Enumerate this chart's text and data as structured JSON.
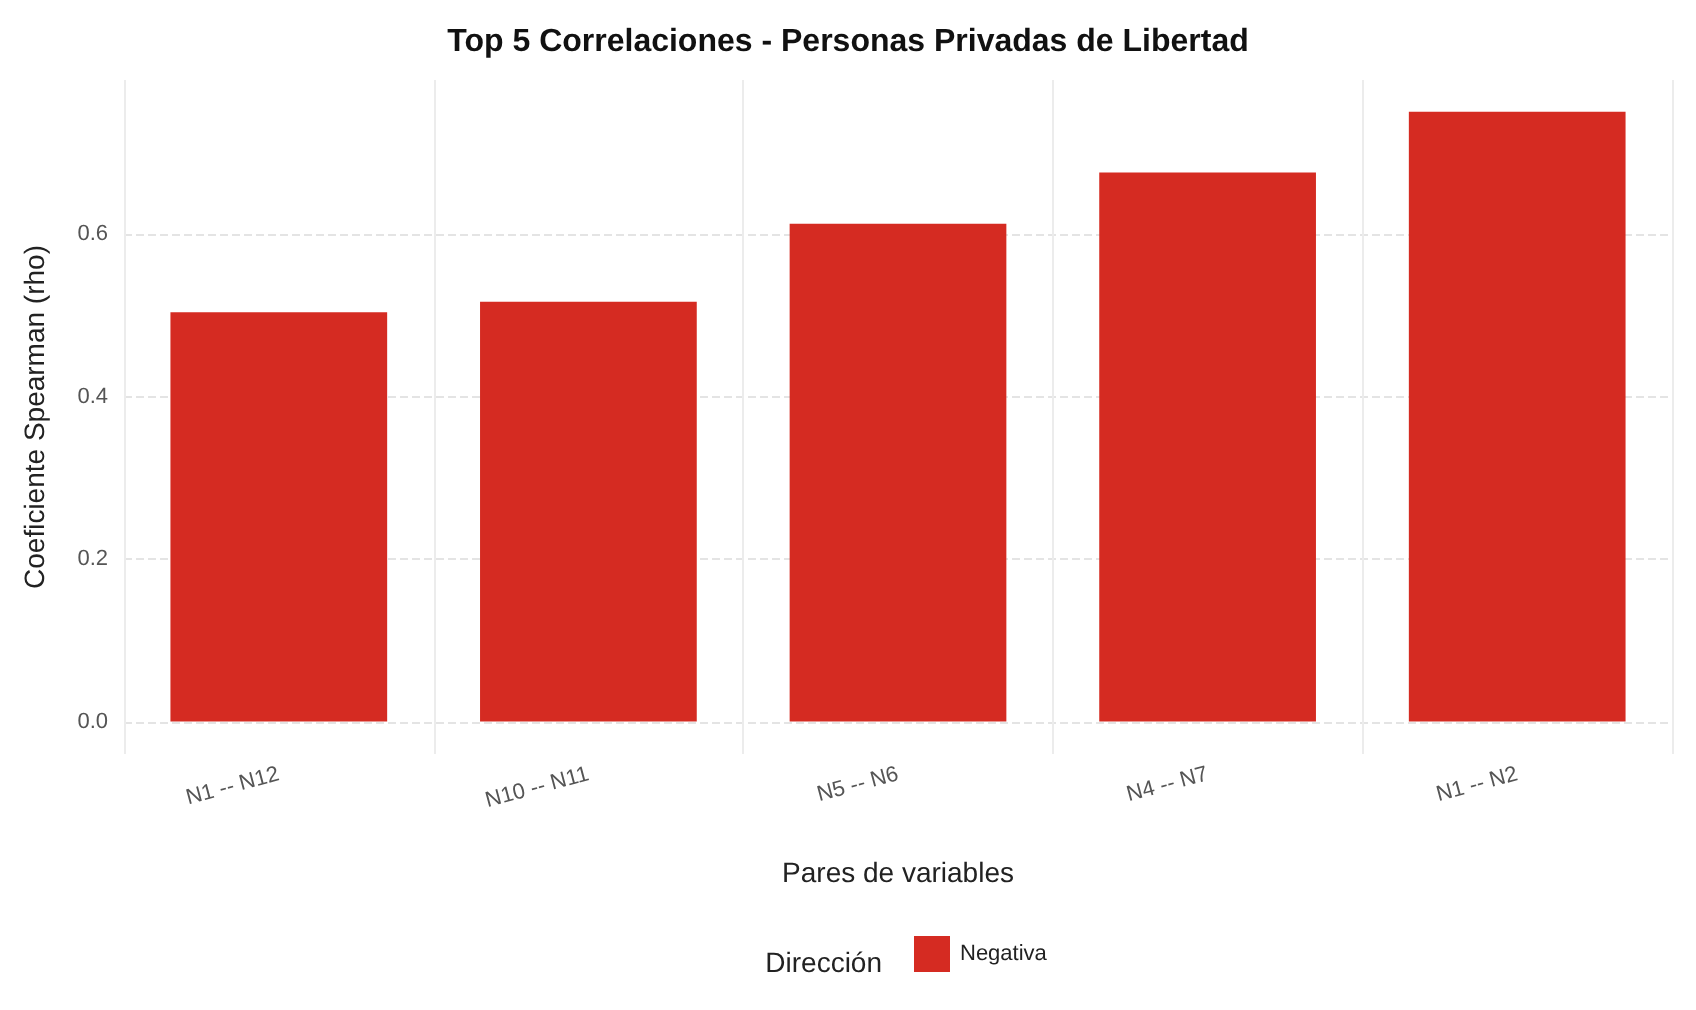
{
  "chart_data": {
    "type": "bar",
    "title": "Top 5 Correlaciones - Personas Privadas de Libertad",
    "xlabel": "Pares de variables",
    "ylabel": "Coeficiente Spearman (rho)",
    "legend_title": "Dirección",
    "categories": [
      "N1 -- N12",
      "N10 -- N11",
      "N5 -- N6",
      "N4 -- N7",
      "N1 -- N2"
    ],
    "series": [
      {
        "name": "Negativa",
        "color": "#d52b22",
        "values": [
          0.504,
          0.517,
          0.613,
          0.676,
          0.751
        ]
      }
    ],
    "ylim": [
      -0.04,
      0.79
    ],
    "yticks": [
      {
        "value": 0,
        "label": "0.0"
      },
      {
        "value": 0.2,
        "label": "0.2"
      },
      {
        "value": 0.4,
        "label": "0.4"
      },
      {
        "value": 0.6,
        "label": "0.6"
      }
    ],
    "grid": true,
    "legend": "bottom"
  }
}
